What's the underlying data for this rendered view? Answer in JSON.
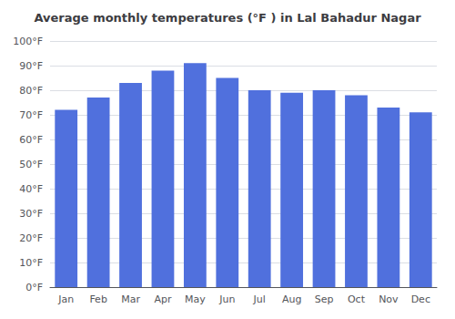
{
  "chart_data": {
    "type": "bar",
    "title": "Average monthly temperatures (°F ) in Lal Bahadur Nagar",
    "categories": [
      "Jan",
      "Feb",
      "Mar",
      "Apr",
      "May",
      "Jun",
      "Jul",
      "Aug",
      "Sep",
      "Oct",
      "Nov",
      "Dec"
    ],
    "values": [
      72,
      77,
      83,
      88,
      91,
      85,
      80,
      79,
      80,
      78,
      73,
      71
    ],
    "ylim": [
      0,
      100
    ],
    "yticks": [
      {
        "value": 0,
        "label": "0°F"
      },
      {
        "value": 10,
        "label": "10°F"
      },
      {
        "value": 20,
        "label": "20°F"
      },
      {
        "value": 30,
        "label": "30°F"
      },
      {
        "value": 40,
        "label": "40°F"
      },
      {
        "value": 50,
        "label": "50°F"
      },
      {
        "value": 60,
        "label": "60°F"
      },
      {
        "value": 70,
        "label": "70°F"
      },
      {
        "value": 80,
        "label": "80°F"
      },
      {
        "value": 90,
        "label": "90°F"
      },
      {
        "value": 100,
        "label": "100°F"
      }
    ],
    "grid": true
  }
}
